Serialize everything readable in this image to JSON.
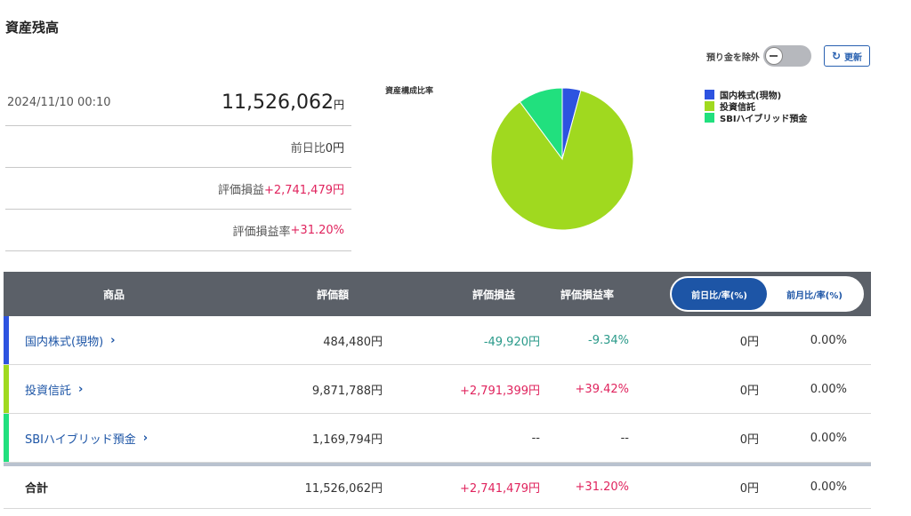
{
  "page": {
    "title": "資産残高"
  },
  "toolbar": {
    "exclude_deposit_label": "預り金を除外",
    "refresh_label": "更新"
  },
  "summary": {
    "datetime": "2024/11/10 00:10",
    "total_value": "11,526,062",
    "total_unit": "円",
    "rows": [
      {
        "label": "前日比",
        "value": "0円"
      },
      {
        "label": "評価損益",
        "value": "+2,741,479円"
      },
      {
        "label": "評価損益率",
        "value": "+31.20%"
      }
    ]
  },
  "chart_data": {
    "type": "pie",
    "title": "資産構成比率",
    "categories": [
      "国内株式(現物)",
      "投資信託",
      "SBIハイブリッド預金"
    ],
    "values": [
      484480,
      9871788,
      1169794
    ],
    "colors": [
      "#2d53e0",
      "#a0d91f",
      "#21e07e"
    ]
  },
  "table": {
    "headers": {
      "product": "商品",
      "value": "評価額",
      "pl": "評価損益",
      "pl_rate": "評価損益率"
    },
    "toggle": {
      "daily": "前日比/率(%)",
      "monthly": "前月比/率(%)"
    },
    "rows": [
      {
        "name": "国内株式(現物)",
        "chev": "›",
        "value": "484,480円",
        "pl": "-49,920円",
        "pl_rate": "-9.34%",
        "change": "0円",
        "change_rate": "0.00%",
        "color": "#2d53e0"
      },
      {
        "name": "投資信託",
        "chev": "›",
        "value": "9,871,788円",
        "pl": "+2,791,399円",
        "pl_rate": "+39.42%",
        "change": "0円",
        "change_rate": "0.00%",
        "color": "#a0d91f"
      },
      {
        "name": "SBIハイブリッド預金",
        "chev": "›",
        "value": "1,169,794円",
        "pl": "--",
        "pl_rate": "--",
        "change": "0円",
        "change_rate": "0.00%",
        "color": "#21e07e"
      }
    ],
    "total": {
      "name": "合計",
      "value": "11,526,062円",
      "pl": "+2,741,479円",
      "pl_rate": "+31.20%",
      "change": "0円",
      "change_rate": "0.00%"
    }
  }
}
